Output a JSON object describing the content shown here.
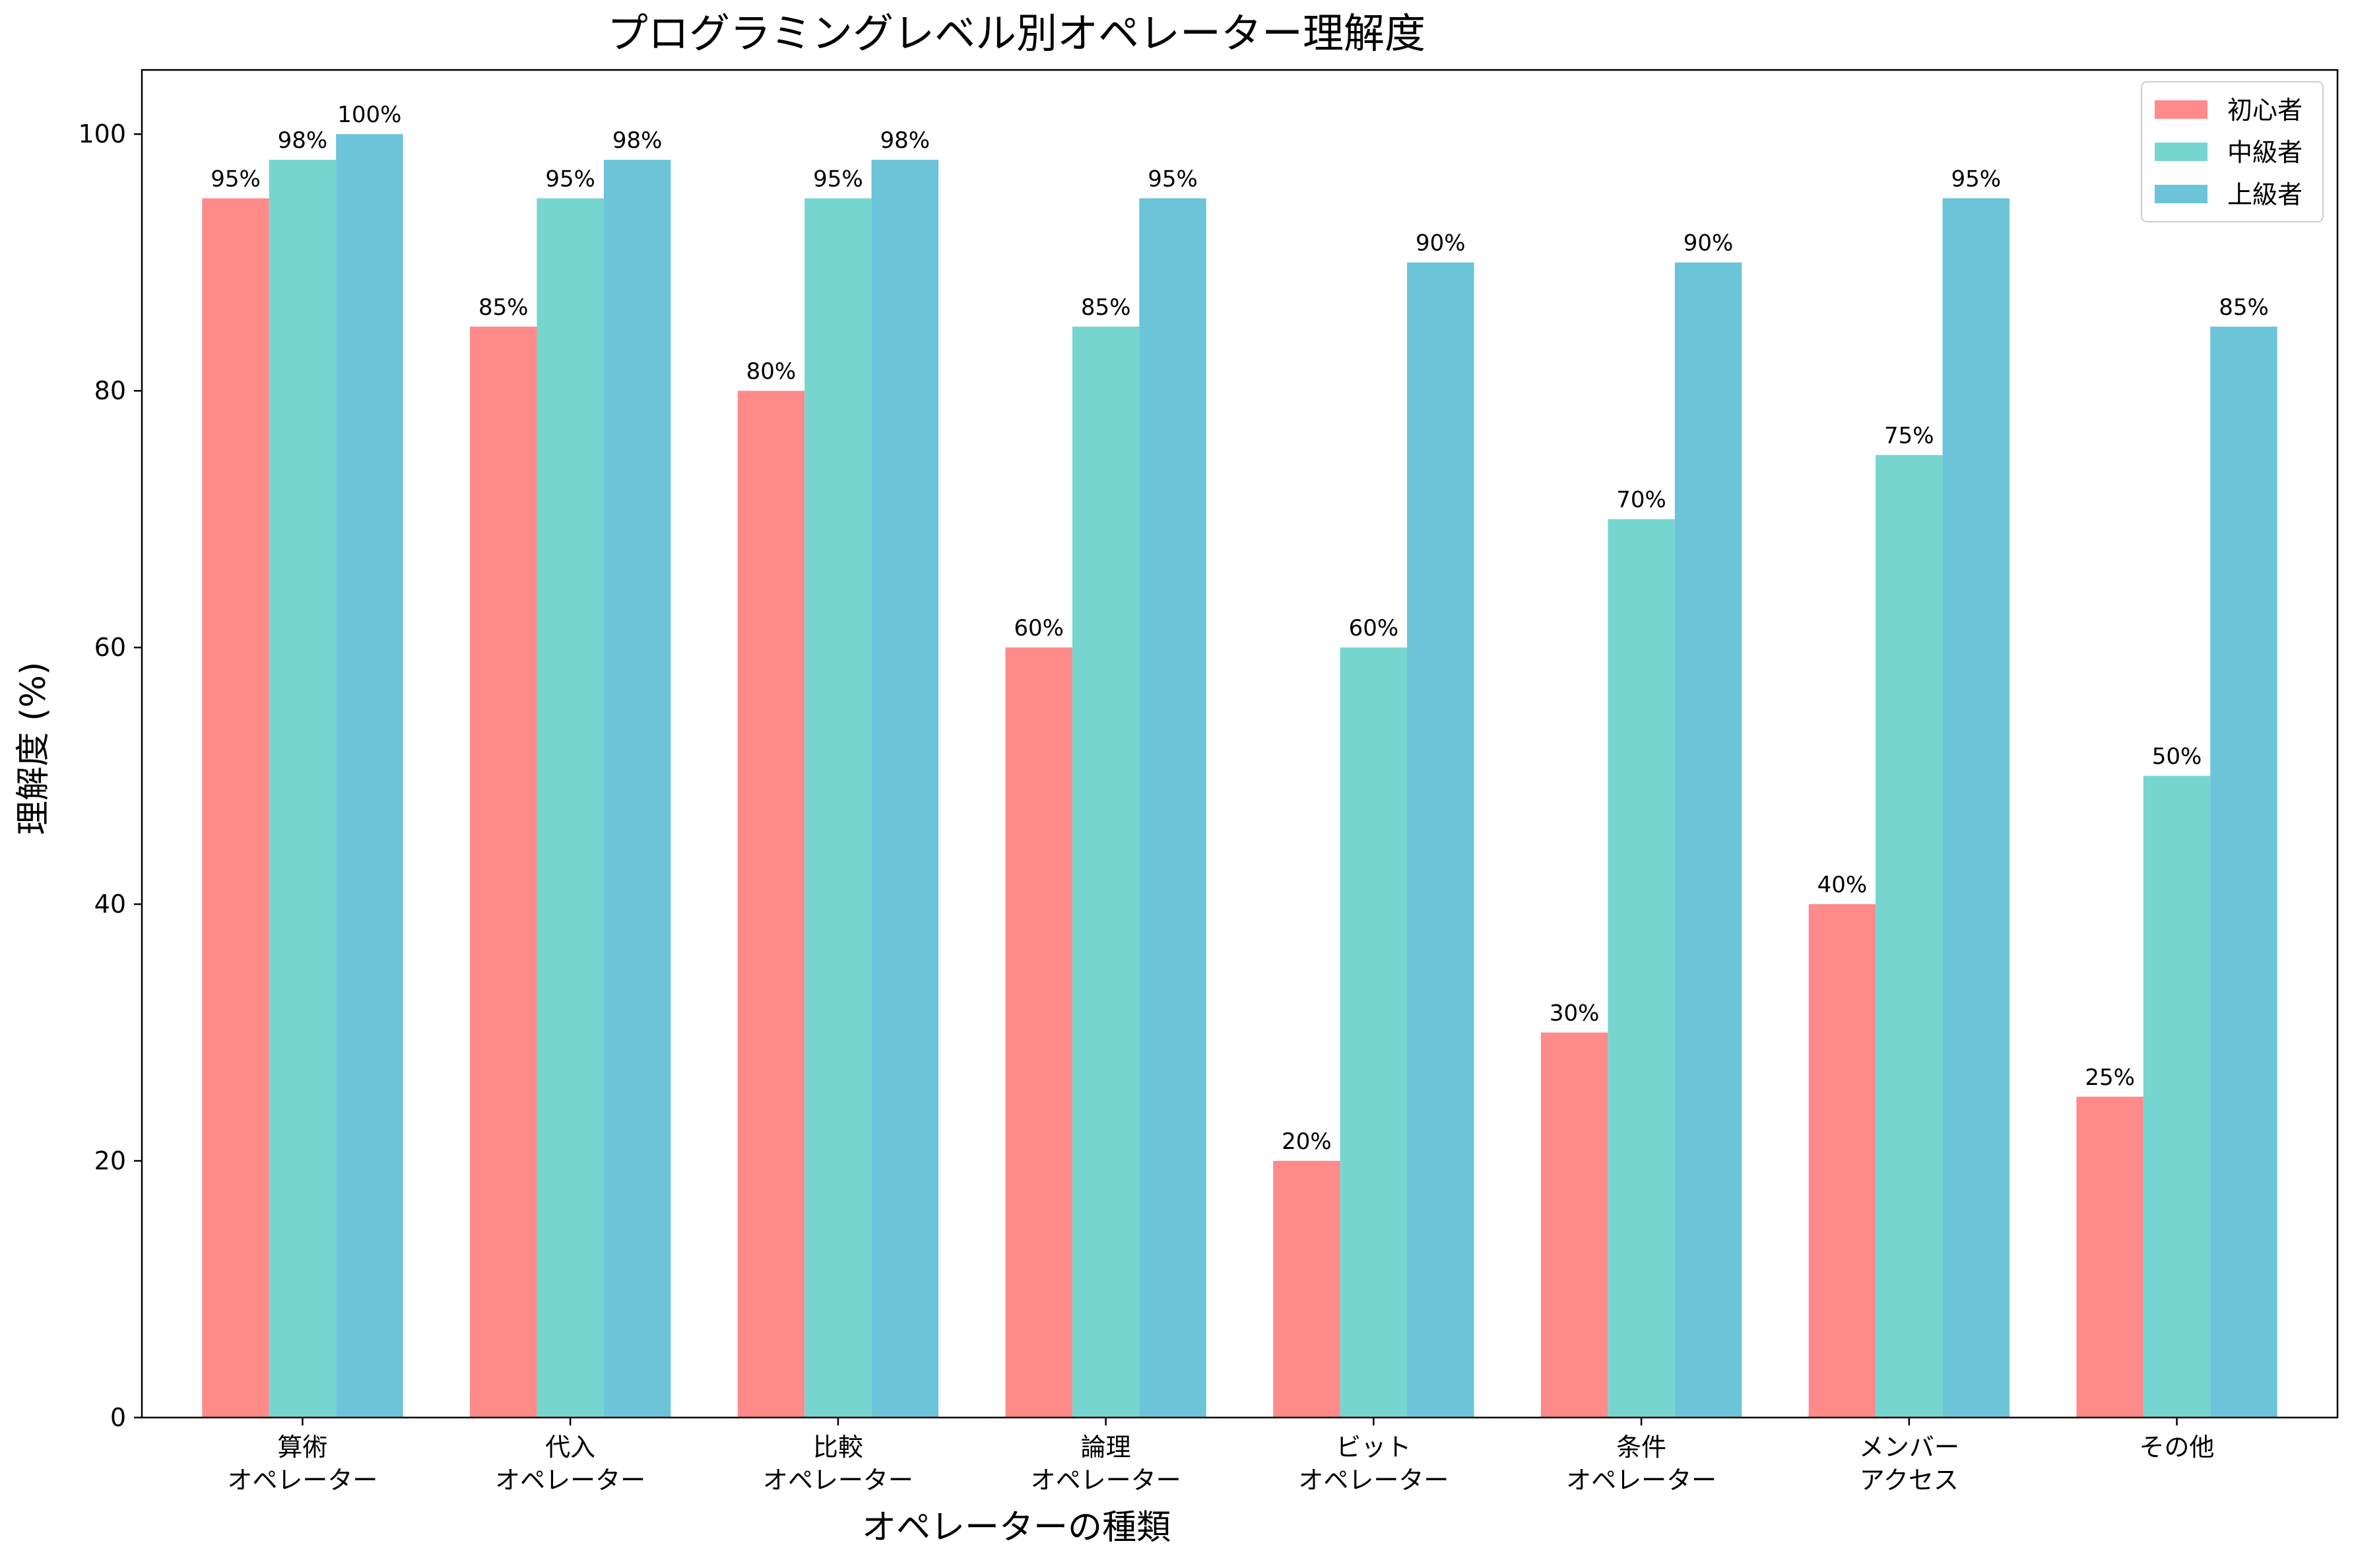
{
  "chart_data": {
    "type": "bar",
    "title": "プログラミングレベル別オペレーター理解度",
    "xlabel": "オペレーターの種類",
    "ylabel": "理解度 (%)",
    "ylim": [
      0,
      105
    ],
    "yticks": [
      0,
      20,
      40,
      60,
      80,
      100
    ],
    "grid": false,
    "legend_position": "top-right",
    "categories": [
      [
        "算術",
        "オペレーター"
      ],
      [
        "代入",
        "オペレーター"
      ],
      [
        "比較",
        "オペレーター"
      ],
      [
        "論理",
        "オペレーター"
      ],
      [
        "ビット",
        "オペレーター"
      ],
      [
        "条件",
        "オペレーター"
      ],
      [
        "メンバー",
        "アクセス"
      ],
      [
        "その他"
      ]
    ],
    "series": [
      {
        "name": "初心者",
        "color": "#FF8A8A",
        "values": [
          95,
          85,
          80,
          60,
          20,
          30,
          40,
          25
        ]
      },
      {
        "name": "中級者",
        "color": "#76D6CF",
        "values": [
          98,
          95,
          95,
          85,
          60,
          70,
          75,
          50
        ]
      },
      {
        "name": "上級者",
        "color": "#6BC4D8",
        "values": [
          100,
          98,
          98,
          95,
          90,
          90,
          95,
          85
        ]
      }
    ],
    "value_suffix": "%"
  }
}
